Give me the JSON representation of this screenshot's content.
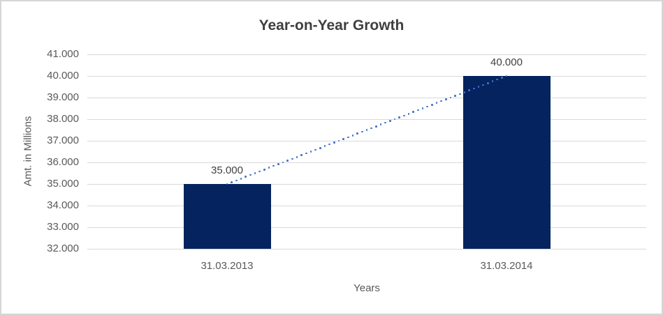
{
  "chart_data": {
    "type": "bar",
    "title": "Year-on-Year Growth",
    "xlabel": "Years",
    "ylabel": "Amt. in Millions",
    "categories": [
      "31.03.2013",
      "31.03.2014"
    ],
    "values": [
      35000,
      40000
    ],
    "data_labels": [
      "35.000",
      "40.000"
    ],
    "y_ticks": [
      "41.000",
      "40.000",
      "39.000",
      "38.000",
      "37.000",
      "36.000",
      "35.000",
      "34.000",
      "33.000",
      "32.000"
    ],
    "y_tick_values": [
      41000,
      40000,
      39000,
      38000,
      37000,
      36000,
      35000,
      34000,
      33000,
      32000
    ],
    "ylim": [
      32000,
      41000
    ],
    "grid": "horizontal-only",
    "legend": "none",
    "trendline": {
      "style": "dotted",
      "from": {
        "category": "31.03.2013",
        "value": 35000
      },
      "to": {
        "category": "31.03.2014",
        "value": 40000
      }
    },
    "colors": {
      "bar": "#04235F",
      "trendline": "#4472C4",
      "gridline": "#D9D9D9",
      "title_text": "#3F3F3F",
      "axis_text": "#595959",
      "data_label_text": "#404040",
      "border": "#D6D6D6",
      "background": "#FFFFFF"
    }
  }
}
